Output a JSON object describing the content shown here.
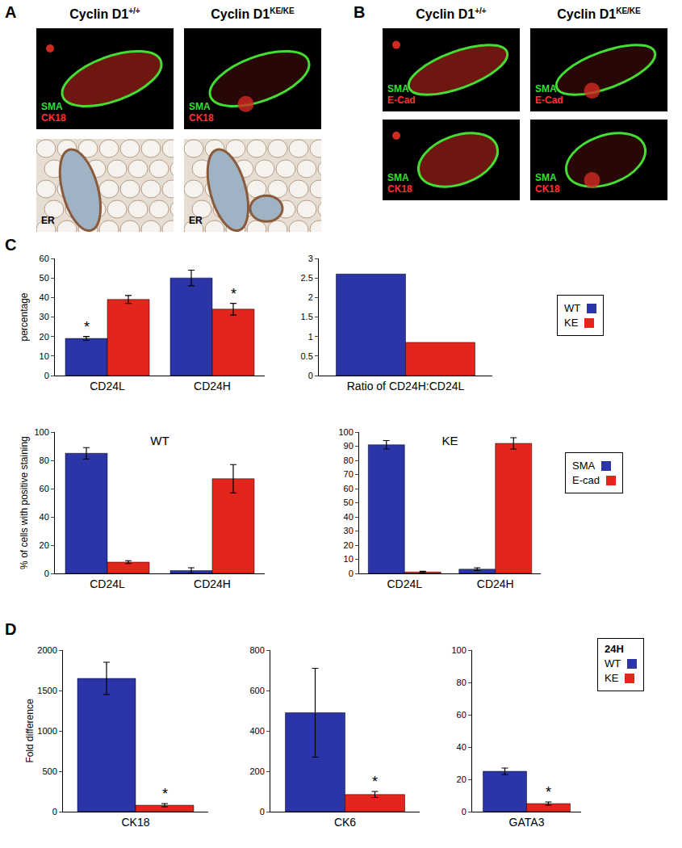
{
  "panels": [
    {
      "letter": "A",
      "columns": [
        {
          "base": "Cyclin D1",
          "sup": "+/+"
        },
        {
          "base": "Cyclin D1",
          "sup": "KE/KE"
        }
      ],
      "rows": [
        {
          "labels": [
            {
              "text": "SMA",
              "color": "#33dd33"
            },
            {
              "text": "CK18",
              "color": "#ff3030"
            }
          ]
        },
        {
          "labels": [
            {
              "text": "ER",
              "color": "#000000"
            }
          ]
        }
      ]
    },
    {
      "letter": "B",
      "columns": [
        {
          "base": "Cyclin D1",
          "sup": "+/+"
        },
        {
          "base": "Cyclin D1",
          "sup": "KE/KE"
        }
      ],
      "rows": [
        {
          "labels": [
            {
              "text": "SMA",
              "color": "#33dd33"
            },
            {
              "text": "E-Cad",
              "color": "#ff3030"
            }
          ]
        },
        {
          "labels": [
            {
              "text": "SMA",
              "color": "#33dd33"
            },
            {
              "text": "CK18",
              "color": "#ff3030"
            }
          ]
        }
      ]
    }
  ],
  "chart_data": [
    {
      "type": "bar",
      "panel": "C",
      "categories": [
        "CD24L",
        "CD24H"
      ],
      "series": [
        {
          "name": "WT",
          "color": "#2b35a8",
          "values": [
            19,
            50
          ],
          "errors": [
            1,
            4
          ]
        },
        {
          "name": "KE",
          "color": "#e3261b",
          "values": [
            39,
            34
          ],
          "errors": [
            2,
            3
          ]
        }
      ],
      "y_label": "percentage",
      "ylim": [
        0,
        60
      ],
      "yticks": [
        0,
        10,
        20,
        30,
        40,
        50,
        60
      ],
      "grid": false,
      "legend": "right",
      "annotations": [
        {
          "text": "*",
          "category": "CD24L",
          "series": "WT"
        },
        {
          "text": "*",
          "category": "CD24H",
          "series": "KE"
        }
      ]
    },
    {
      "type": "bar",
      "categories": [
        "Ratio of CD24H:CD24L"
      ],
      "series": [
        {
          "name": "WT",
          "color": "#2b35a8",
          "values": [
            2.6
          ]
        },
        {
          "name": "KE",
          "color": "#e3261b",
          "values": [
            0.85
          ]
        }
      ],
      "ylim": [
        0,
        3
      ],
      "yticks": [
        0,
        0.5,
        1,
        1.5,
        2,
        2.5,
        3
      ],
      "grid": false
    },
    {
      "type": "bar",
      "title": "WT",
      "categories": [
        "CD24L",
        "CD24H"
      ],
      "series": [
        {
          "name": "SMA",
          "color": "#2b35a8",
          "values": [
            85,
            2
          ],
          "errors": [
            4,
            2
          ]
        },
        {
          "name": "E-cad",
          "color": "#e3261b",
          "values": [
            8,
            67
          ],
          "errors": [
            1,
            10
          ]
        }
      ],
      "y_label": "% of cells with positive staining",
      "ylim": [
        0,
        100
      ],
      "yticks": [
        0,
        20,
        40,
        60,
        80,
        100
      ],
      "grid": false
    },
    {
      "type": "bar",
      "title": "KE",
      "categories": [
        "CD24L",
        "CD24H"
      ],
      "series": [
        {
          "name": "SMA",
          "color": "#2b35a8",
          "values": [
            91,
            3
          ],
          "errors": [
            3,
            1
          ]
        },
        {
          "name": "E-cad",
          "color": "#e3261b",
          "values": [
            1,
            92
          ],
          "errors": [
            0.5,
            4
          ]
        }
      ],
      "ylim": [
        0,
        100
      ],
      "yticks": [
        0,
        10,
        20,
        30,
        40,
        50,
        60,
        70,
        80,
        90,
        100
      ],
      "grid": false,
      "legend": "right"
    },
    {
      "type": "bar",
      "panel": "D",
      "categories": [
        "CK18"
      ],
      "series": [
        {
          "name": "WT",
          "color": "#2b35a8",
          "values": [
            1650
          ],
          "errors": [
            200
          ]
        },
        {
          "name": "KE",
          "color": "#e3261b",
          "values": [
            80
          ],
          "errors": [
            20
          ]
        }
      ],
      "y_label": "Fold difference",
      "ylim": [
        0,
        2000
      ],
      "yticks": [
        0,
        500,
        1000,
        1500,
        2000
      ],
      "grid": false,
      "annotations": [
        {
          "text": "*",
          "category": "CK18",
          "series": "KE"
        }
      ]
    },
    {
      "type": "bar",
      "categories": [
        "CK6"
      ],
      "series": [
        {
          "name": "WT",
          "color": "#2b35a8",
          "values": [
            490
          ],
          "errors": [
            220
          ]
        },
        {
          "name": "KE",
          "color": "#e3261b",
          "values": [
            85
          ],
          "errors": [
            15
          ]
        }
      ],
      "ylim": [
        0,
        800
      ],
      "yticks": [
        0,
        200,
        400,
        600,
        800
      ],
      "grid": false,
      "annotations": [
        {
          "text": "*",
          "category": "CK6",
          "series": "KE"
        }
      ]
    },
    {
      "type": "bar",
      "categories": [
        "GATA3"
      ],
      "series": [
        {
          "name": "WT",
          "color": "#2b35a8",
          "values": [
            25
          ],
          "errors": [
            2
          ]
        },
        {
          "name": "KE",
          "color": "#e3261b",
          "values": [
            5
          ],
          "errors": [
            1
          ]
        }
      ],
      "ylim": [
        0,
        100
      ],
      "yticks": [
        0,
        20,
        40,
        60,
        80,
        100
      ],
      "grid": false,
      "legend": "right",
      "legend_title": "24H",
      "annotations": [
        {
          "text": "*",
          "category": "GATA3",
          "series": "KE"
        }
      ]
    }
  ]
}
